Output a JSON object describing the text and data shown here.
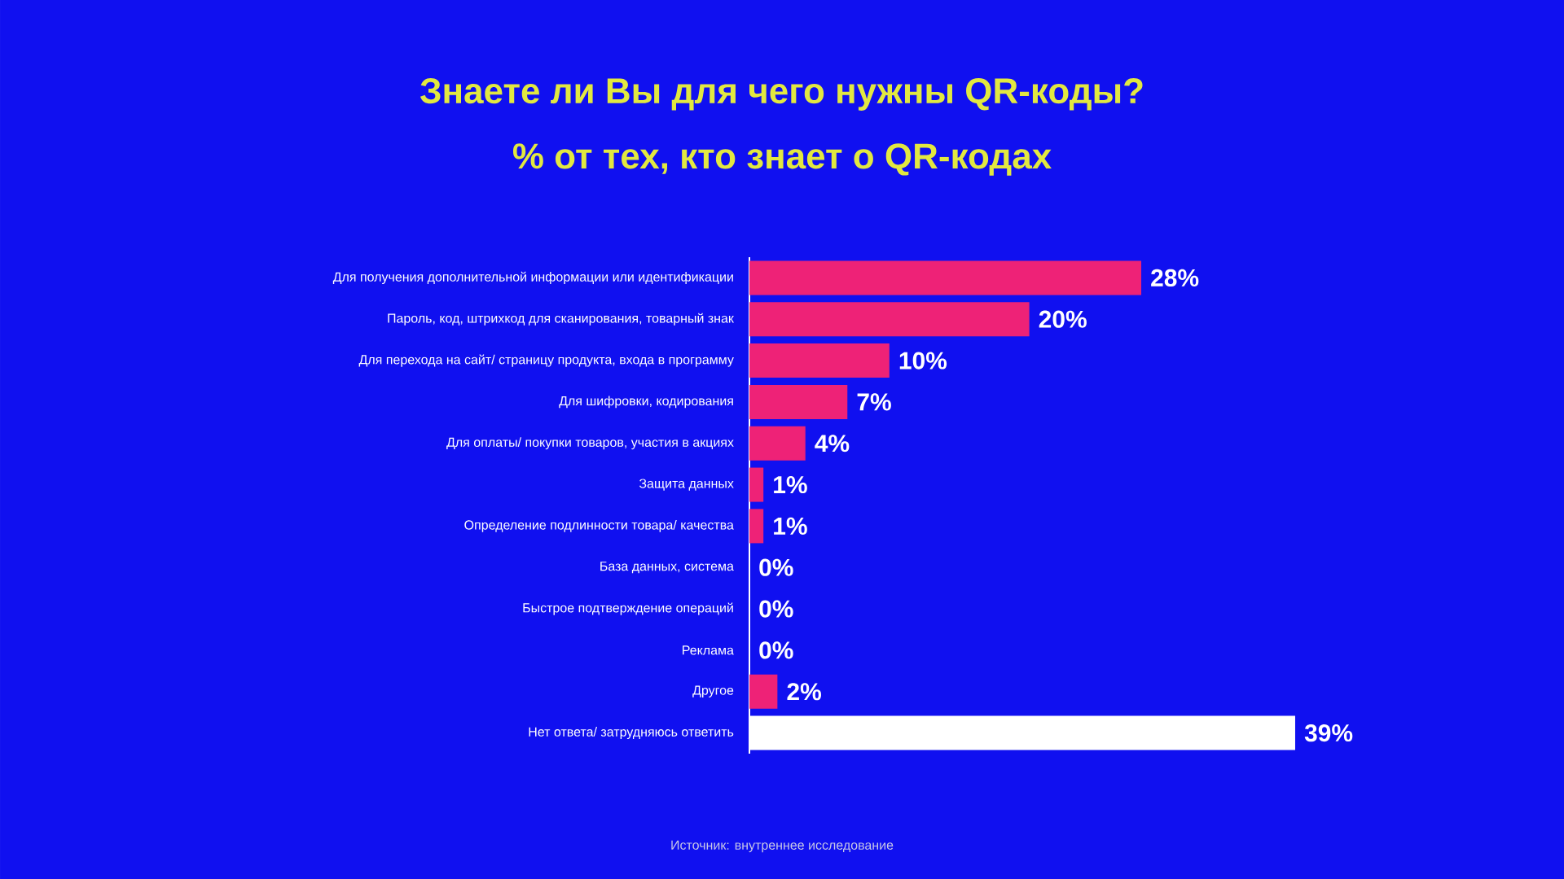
{
  "chart_data": {
    "type": "bar",
    "orientation": "horizontal",
    "title": "Знаете ли Вы для чего нужны QR-коды?",
    "subtitle": "% от тех, кто знает о QR-кодах",
    "categories": [
      "Для получения дополнительной информации или идентификации",
      "Пароль, код, штрихкод для сканирования, товарный знак",
      "Для перехода на сайт/ страницу продукта, входа в программу",
      "Для шифровки, кодирования",
      "Для оплаты/ покупки товаров, участия в акциях",
      "Защита данных",
      "Определение подлинности товара/ качества",
      "База данных, система",
      "Быстрое подтверждение операций",
      "Реклама",
      "Другое",
      "Нет ответа/ затрудняюсь ответить"
    ],
    "values": [
      28,
      20,
      10,
      7,
      4,
      1,
      1,
      0,
      0,
      0,
      2,
      39
    ],
    "colors": [
      "#ee2277",
      "#ee2277",
      "#ee2277",
      "#ee2277",
      "#ee2277",
      "#ee2277",
      "#ee2277",
      "#ee2277",
      "#ee2277",
      "#ee2277",
      "#ee2277",
      "#ffffff"
    ],
    "value_labels": [
      "28%",
      "20%",
      "10%",
      "7%",
      "4%",
      "1%",
      "1%",
      "0%",
      "0%",
      "0%",
      "2%",
      "39%"
    ],
    "tick_labels": "y",
    "annotations": [
      "Источник: внутреннее исследование"
    ]
  }
}
